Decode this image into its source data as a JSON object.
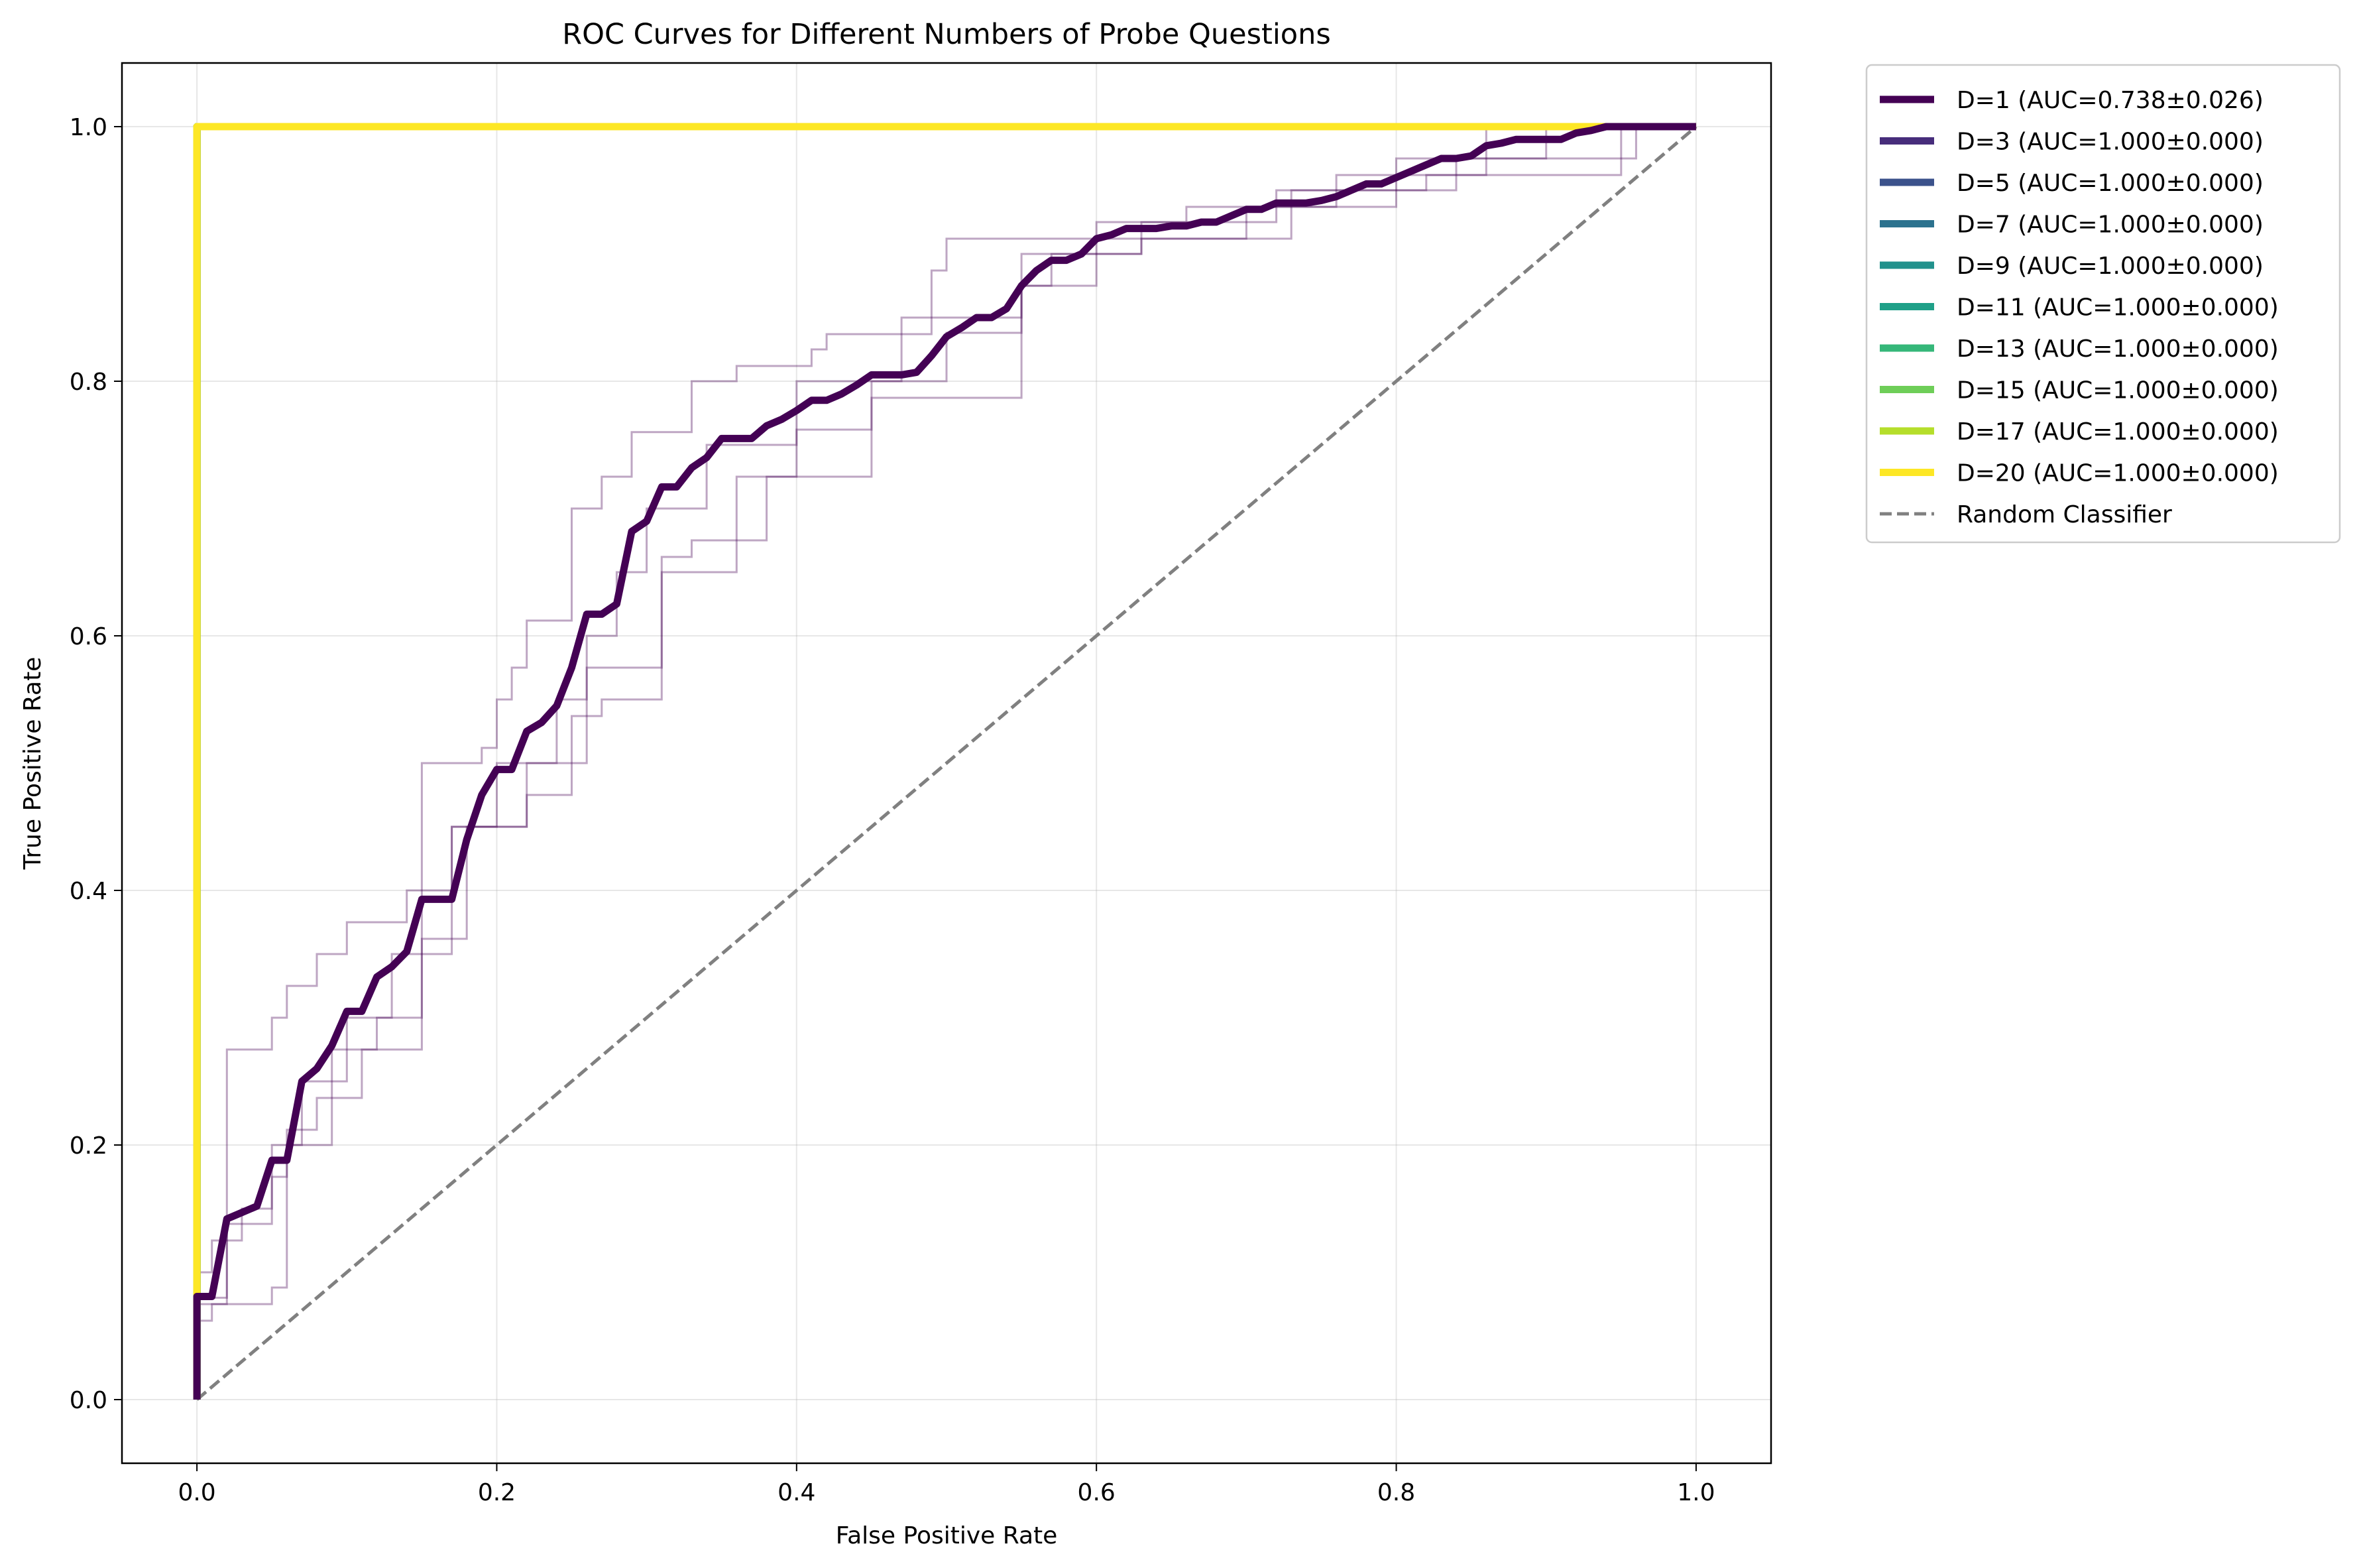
{
  "chart_data": {
    "type": "line",
    "title": "ROC Curves for Different Numbers of Probe Questions",
    "xlabel": "False Positive Rate",
    "ylabel": "True Positive Rate",
    "xlim": [
      -0.05,
      1.05
    ],
    "ylim": [
      -0.05,
      1.05
    ],
    "x_ticks": [
      "0.0",
      "0.2",
      "0.4",
      "0.6",
      "0.8",
      "1.0"
    ],
    "y_ticks": [
      "0.0",
      "0.2",
      "0.4",
      "0.6",
      "0.8",
      "1.0"
    ],
    "grid": true,
    "legend_position": "outside upper right",
    "series": [
      {
        "name": "D=1 (AUC=0.738±0.026)",
        "color": "#440154",
        "style": "solid",
        "x": [
          0.0,
          0.0,
          0.01,
          0.02,
          0.03,
          0.04,
          0.05,
          0.06,
          0.07,
          0.08,
          0.09,
          0.1,
          0.11,
          0.12,
          0.13,
          0.14,
          0.15,
          0.16,
          0.17,
          0.18,
          0.19,
          0.2,
          0.21,
          0.22,
          0.23,
          0.24,
          0.25,
          0.26,
          0.27,
          0.28,
          0.29,
          0.3,
          0.31,
          0.32,
          0.33,
          0.34,
          0.35,
          0.36,
          0.37,
          0.38,
          0.39,
          0.4,
          0.41,
          0.42,
          0.43,
          0.44,
          0.45,
          0.46,
          0.47,
          0.48,
          0.49,
          0.5,
          0.51,
          0.52,
          0.53,
          0.54,
          0.55,
          0.56,
          0.57,
          0.58,
          0.59,
          0.6,
          0.61,
          0.62,
          0.63,
          0.64,
          0.65,
          0.66,
          0.67,
          0.68,
          0.69,
          0.7,
          0.71,
          0.72,
          0.73,
          0.74,
          0.75,
          0.76,
          0.77,
          0.78,
          0.79,
          0.8,
          0.81,
          0.82,
          0.83,
          0.84,
          0.85,
          0.86,
          0.87,
          0.88,
          0.89,
          0.9,
          0.91,
          0.92,
          0.93,
          0.94,
          0.95,
          0.96,
          0.97,
          0.98,
          0.99,
          1.0
        ],
        "y": [
          0.0,
          0.081,
          0.081,
          0.142,
          0.147,
          0.152,
          0.188,
          0.188,
          0.25,
          0.26,
          0.278,
          0.305,
          0.305,
          0.332,
          0.34,
          0.352,
          0.393,
          0.393,
          0.393,
          0.44,
          0.475,
          0.495,
          0.495,
          0.525,
          0.532,
          0.545,
          0.575,
          0.617,
          0.617,
          0.625,
          0.682,
          0.69,
          0.717,
          0.717,
          0.732,
          0.74,
          0.755,
          0.755,
          0.755,
          0.765,
          0.77,
          0.777,
          0.785,
          0.785,
          0.79,
          0.797,
          0.805,
          0.805,
          0.805,
          0.807,
          0.82,
          0.835,
          0.842,
          0.85,
          0.85,
          0.857,
          0.875,
          0.887,
          0.895,
          0.895,
          0.9,
          0.912,
          0.915,
          0.92,
          0.92,
          0.92,
          0.922,
          0.922,
          0.925,
          0.925,
          0.93,
          0.935,
          0.935,
          0.94,
          0.94,
          0.94,
          0.942,
          0.945,
          0.95,
          0.955,
          0.955,
          0.96,
          0.965,
          0.97,
          0.975,
          0.975,
          0.977,
          0.985,
          0.987,
          0.99,
          0.99,
          0.99,
          0.99,
          0.995,
          0.997,
          1.0,
          1.0,
          1.0,
          1.0,
          1.0,
          1.0,
          1.0
        ]
      },
      {
        "name": "D=3 (AUC=1.000±0.000)",
        "color": "#472d7b",
        "style": "solid",
        "x": [
          0,
          0,
          1
        ],
        "y": [
          0,
          1,
          1
        ]
      },
      {
        "name": "D=5 (AUC=1.000±0.000)",
        "color": "#3b528b",
        "style": "solid",
        "x": [
          0,
          0,
          1
        ],
        "y": [
          0,
          1,
          1
        ]
      },
      {
        "name": "D=7 (AUC=1.000±0.000)",
        "color": "#2c728e",
        "style": "solid",
        "x": [
          0,
          0,
          1
        ],
        "y": [
          0,
          1,
          1
        ]
      },
      {
        "name": "D=9 (AUC=1.000±0.000)",
        "color": "#21918c",
        "style": "solid",
        "x": [
          0,
          0,
          1
        ],
        "y": [
          0,
          1,
          1
        ]
      },
      {
        "name": "D=11 (AUC=1.000±0.000)",
        "color": "#1fa088",
        "style": "solid",
        "x": [
          0,
          0,
          1
        ],
        "y": [
          0,
          1,
          1
        ]
      },
      {
        "name": "D=13 (AUC=1.000±0.000)",
        "color": "#35b779",
        "style": "solid",
        "x": [
          0,
          0,
          1
        ],
        "y": [
          0,
          1,
          1
        ]
      },
      {
        "name": "D=15 (AUC=1.000±0.000)",
        "color": "#6ece58",
        "style": "solid",
        "x": [
          0,
          0,
          1
        ],
        "y": [
          0,
          1,
          1
        ]
      },
      {
        "name": "D=17 (AUC=1.000±0.000)",
        "color": "#b5de2b",
        "style": "solid",
        "x": [
          0,
          0,
          1
        ],
        "y": [
          0,
          1,
          1
        ]
      },
      {
        "name": "D=20 (AUC=1.000±0.000)",
        "color": "#fde725",
        "style": "solid",
        "x": [
          0,
          0,
          1
        ],
        "y": [
          0,
          1,
          1
        ]
      },
      {
        "name": "Random Classifier",
        "color": "#808080",
        "style": "dashed",
        "x": [
          0,
          1
        ],
        "y": [
          0,
          1
        ]
      }
    ],
    "fold_curves": {
      "color": "#440154",
      "curves": [
        {
          "x": [
            0,
            0.0,
            0.02,
            0.02,
            0.05,
            0.05,
            0.06,
            0.06,
            0.08,
            0.08,
            0.1,
            0.1,
            0.14,
            0.14,
            0.15,
            0.15,
            0.19,
            0.19,
            0.2,
            0.2,
            0.21,
            0.21,
            0.22,
            0.22,
            0.25,
            0.25,
            0.27,
            0.27,
            0.29,
            0.29,
            0.33,
            0.33,
            0.36,
            0.36,
            0.41,
            0.41,
            0.42,
            0.42,
            0.49,
            0.49,
            0.5,
            0.5,
            0.6,
            0.6,
            0.66,
            0.66,
            0.76,
            0.76,
            0.86,
            0.86,
            1.0
          ],
          "y": [
            0,
            0.08,
            0.08,
            0.275,
            0.275,
            0.3,
            0.3,
            0.325,
            0.325,
            0.35,
            0.35,
            0.375,
            0.375,
            0.4,
            0.4,
            0.5,
            0.5,
            0.512,
            0.512,
            0.55,
            0.55,
            0.575,
            0.575,
            0.612,
            0.612,
            0.7,
            0.7,
            0.725,
            0.725,
            0.76,
            0.76,
            0.8,
            0.8,
            0.812,
            0.812,
            0.825,
            0.825,
            0.837,
            0.837,
            0.887,
            0.887,
            0.912,
            0.912,
            0.925,
            0.925,
            0.937,
            0.937,
            0.962,
            0.962,
            1.0,
            1.0
          ]
        },
        {
          "x": [
            0,
            0.0,
            0.01,
            0.01,
            0.03,
            0.03,
            0.05,
            0.05,
            0.07,
            0.07,
            0.1,
            0.1,
            0.13,
            0.13,
            0.15,
            0.15,
            0.17,
            0.17,
            0.2,
            0.2,
            0.24,
            0.24,
            0.26,
            0.26,
            0.28,
            0.28,
            0.3,
            0.3,
            0.34,
            0.34,
            0.4,
            0.4,
            0.47,
            0.47,
            0.55,
            0.55,
            0.57,
            0.57,
            0.63,
            0.63,
            0.72,
            0.72,
            0.84,
            0.84,
            0.96,
            0.96,
            1.0
          ],
          "y": [
            0,
            0.1,
            0.1,
            0.125,
            0.125,
            0.15,
            0.15,
            0.2,
            0.2,
            0.25,
            0.25,
            0.3,
            0.3,
            0.35,
            0.35,
            0.4,
            0.4,
            0.45,
            0.45,
            0.5,
            0.5,
            0.55,
            0.55,
            0.6,
            0.6,
            0.65,
            0.65,
            0.7,
            0.7,
            0.75,
            0.75,
            0.8,
            0.8,
            0.85,
            0.85,
            0.875,
            0.875,
            0.9,
            0.9,
            0.925,
            0.925,
            0.95,
            0.95,
            0.975,
            0.975,
            1.0,
            1.0
          ]
        },
        {
          "x": [
            0,
            0.0,
            0.02,
            0.02,
            0.05,
            0.05,
            0.06,
            0.06,
            0.08,
            0.08,
            0.11,
            0.11,
            0.15,
            0.15,
            0.18,
            0.18,
            0.22,
            0.22,
            0.26,
            0.26,
            0.31,
            0.31,
            0.36,
            0.36,
            0.4,
            0.4,
            0.45,
            0.45,
            0.5,
            0.5,
            0.55,
            0.55,
            0.6,
            0.6,
            0.7,
            0.7,
            0.8,
            0.8,
            0.9,
            0.9,
            1.0
          ],
          "y": [
            0,
            0.075,
            0.075,
            0.138,
            0.138,
            0.175,
            0.175,
            0.212,
            0.212,
            0.237,
            0.237,
            0.275,
            0.275,
            0.362,
            0.362,
            0.45,
            0.45,
            0.5,
            0.5,
            0.575,
            0.575,
            0.65,
            0.65,
            0.725,
            0.725,
            0.762,
            0.762,
            0.8,
            0.8,
            0.838,
            0.838,
            0.875,
            0.875,
            0.912,
            0.912,
            0.937,
            0.937,
            0.975,
            0.975,
            1.0,
            1.0
          ]
        },
        {
          "x": [
            0,
            0.0,
            0.01,
            0.01,
            0.05,
            0.05,
            0.06,
            0.06,
            0.09,
            0.09,
            0.12,
            0.12,
            0.15,
            0.15,
            0.17,
            0.17,
            0.22,
            0.22,
            0.25,
            0.25,
            0.27,
            0.27,
            0.31,
            0.31,
            0.33,
            0.33,
            0.38,
            0.38,
            0.45,
            0.45,
            0.55,
            0.55,
            0.63,
            0.63,
            0.73,
            0.73,
            0.82,
            0.82,
            0.95,
            0.95,
            1.0
          ],
          "y": [
            0,
            0.062,
            0.062,
            0.075,
            0.075,
            0.088,
            0.088,
            0.2,
            0.2,
            0.275,
            0.275,
            0.3,
            0.3,
            0.35,
            0.35,
            0.45,
            0.45,
            0.475,
            0.475,
            0.537,
            0.537,
            0.55,
            0.55,
            0.662,
            0.662,
            0.675,
            0.675,
            0.725,
            0.725,
            0.787,
            0.787,
            0.9,
            0.9,
            0.912,
            0.912,
            0.95,
            0.95,
            0.962,
            0.962,
            1.0,
            1.0
          ]
        }
      ]
    }
  }
}
